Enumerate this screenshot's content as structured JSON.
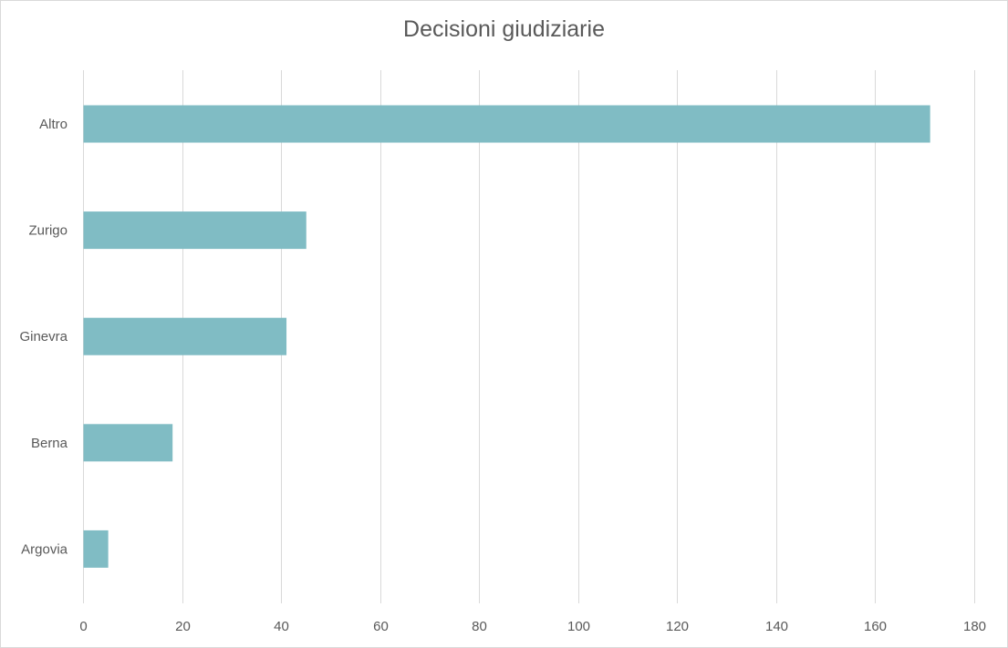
{
  "chart_data": {
    "type": "bar",
    "orientation": "horizontal",
    "title": "Decisioni giudiziarie",
    "categories": [
      "Altro",
      "Zurigo",
      "Ginevra",
      "Berna",
      "Argovia"
    ],
    "values": [
      171,
      45,
      41,
      18,
      5
    ],
    "xlabel": "",
    "ylabel": "",
    "xlim": [
      0,
      180
    ],
    "x_ticks": [
      "0",
      "20",
      "40",
      "60",
      "80",
      "100",
      "120",
      "140",
      "160",
      "180"
    ],
    "grid": "vertical",
    "legend": "none",
    "colors": {
      "bar": "#80bcc4",
      "grid": "#d9d9d9",
      "text": "#595959"
    }
  }
}
